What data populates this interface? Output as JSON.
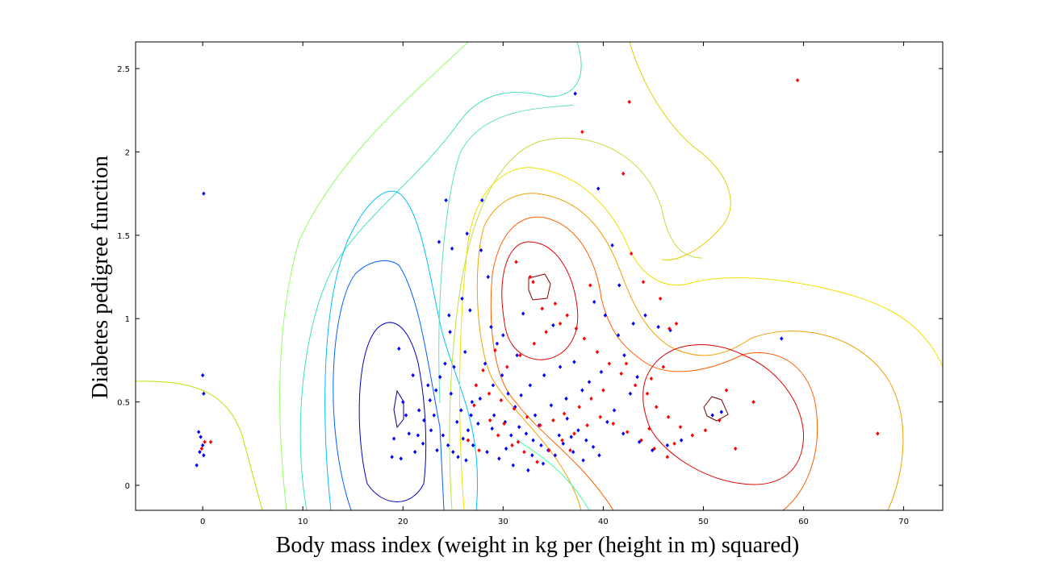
{
  "chart_data": {
    "type": "scatter",
    "title": "",
    "xlabel": "Body mass index (weight in kg per (height in m) squared)",
    "ylabel": "Diabetes pedigree function",
    "xlim": [
      -6.7,
      73.9
    ],
    "ylim": [
      -0.15,
      2.66
    ],
    "xticks": [
      0,
      10,
      20,
      30,
      40,
      50,
      60,
      70
    ],
    "yticks": [
      0,
      0.5,
      1,
      1.5,
      2,
      2.5
    ],
    "xtick_labels": [
      "0",
      "10",
      "20",
      "30",
      "40",
      "50",
      "60",
      "70"
    ],
    "ytick_labels": [
      "0",
      "0.5",
      "1",
      "1.5",
      "2",
      "2.5"
    ],
    "grid": false,
    "legend": "none",
    "series": [
      {
        "color": "#0000ff",
        "marker": "diamond",
        "points": [
          [
            0.1,
            1.75
          ],
          [
            0.0,
            0.66
          ],
          [
            0.1,
            0.55
          ],
          [
            -0.4,
            0.32
          ],
          [
            -0.2,
            0.29
          ],
          [
            0.0,
            0.24
          ],
          [
            -0.3,
            0.2
          ],
          [
            0.1,
            0.18
          ],
          [
            -0.6,
            0.12
          ],
          [
            19.6,
            0.82
          ],
          [
            20.0,
            0.5
          ],
          [
            21.0,
            0.66
          ],
          [
            21.6,
            0.45
          ],
          [
            22.1,
            0.39
          ],
          [
            20.6,
            0.31
          ],
          [
            19.1,
            0.28
          ],
          [
            18.9,
            0.17
          ],
          [
            19.8,
            0.16
          ],
          [
            21.2,
            0.2
          ],
          [
            22.5,
            0.6
          ],
          [
            23.3,
            0.57
          ],
          [
            23.7,
            0.65
          ],
          [
            24.2,
            0.73
          ],
          [
            23.1,
            0.42
          ],
          [
            22.8,
            0.33
          ],
          [
            24.0,
            0.3
          ],
          [
            24.5,
            0.24
          ],
          [
            23.4,
            0.21
          ],
          [
            25.0,
            0.2
          ],
          [
            25.5,
            0.17
          ],
          [
            26.0,
            0.28
          ],
          [
            26.5,
            0.33
          ],
          [
            25.8,
            0.45
          ],
          [
            26.9,
            0.5
          ],
          [
            27.3,
            0.6
          ],
          [
            25.1,
            0.71
          ],
          [
            26.2,
            0.8
          ],
          [
            24.7,
            0.92
          ],
          [
            27.5,
            0.37
          ],
          [
            24.3,
            1.71
          ],
          [
            27.9,
            1.71
          ],
          [
            23.6,
            1.46
          ],
          [
            24.9,
            1.42
          ],
          [
            26.4,
            1.51
          ],
          [
            27.8,
            1.41
          ],
          [
            28.5,
            1.25
          ],
          [
            25.9,
            1.12
          ],
          [
            24.6,
            1.02
          ],
          [
            26.7,
            1.05
          ],
          [
            28.8,
            0.95
          ],
          [
            29.4,
            0.85
          ],
          [
            28.2,
            0.73
          ],
          [
            29.9,
            0.66
          ],
          [
            30.5,
            0.55
          ],
          [
            31.2,
            0.47
          ],
          [
            29.1,
            0.42
          ],
          [
            30.2,
            0.38
          ],
          [
            31.6,
            0.35
          ],
          [
            32.3,
            0.31
          ],
          [
            33.0,
            0.27
          ],
          [
            33.8,
            0.24
          ],
          [
            34.5,
            0.21
          ],
          [
            35.2,
            0.18
          ],
          [
            36.0,
            0.25
          ],
          [
            36.8,
            0.29
          ],
          [
            37.5,
            0.33
          ],
          [
            38.3,
            0.27
          ],
          [
            39.0,
            0.23
          ],
          [
            39.6,
            0.18
          ],
          [
            28.4,
            0.2
          ],
          [
            29.6,
            0.16
          ],
          [
            31.0,
            0.12
          ],
          [
            32.5,
            0.09
          ],
          [
            34.0,
            0.13
          ],
          [
            35.6,
            0.3
          ],
          [
            33.2,
            0.42
          ],
          [
            34.8,
            0.48
          ],
          [
            36.3,
            0.52
          ],
          [
            37.9,
            0.57
          ],
          [
            38.6,
            0.62
          ],
          [
            39.8,
            0.68
          ],
          [
            37.1,
            0.74
          ],
          [
            35.7,
            0.71
          ],
          [
            34.1,
            0.66
          ],
          [
            32.7,
            0.6
          ],
          [
            31.4,
            0.78
          ],
          [
            30.0,
            0.9
          ],
          [
            32.0,
            1.03
          ],
          [
            35.0,
            0.96
          ],
          [
            37.2,
            2.35
          ],
          [
            39.5,
            1.78
          ],
          [
            40.9,
            1.44
          ],
          [
            41.6,
            1.2
          ],
          [
            39.1,
            1.1
          ],
          [
            40.2,
            1.02
          ],
          [
            42.1,
            0.78
          ],
          [
            41.5,
            0.9
          ],
          [
            43.0,
            0.97
          ],
          [
            44.2,
            1.02
          ],
          [
            45.5,
            0.95
          ],
          [
            43.4,
            0.65
          ],
          [
            42.7,
            0.55
          ],
          [
            41.1,
            0.45
          ],
          [
            40.4,
            0.38
          ],
          [
            42.0,
            0.31
          ],
          [
            43.6,
            0.26
          ],
          [
            44.9,
            0.21
          ],
          [
            46.4,
            0.24
          ],
          [
            47.8,
            0.27
          ],
          [
            38.0,
            0.15
          ],
          [
            37.0,
            0.2
          ],
          [
            36.4,
            0.4
          ],
          [
            33.6,
            0.36
          ],
          [
            30.8,
            0.3
          ],
          [
            27.0,
            0.24
          ],
          [
            26.3,
            0.15
          ],
          [
            28.9,
            0.34
          ],
          [
            30.3,
            0.22
          ],
          [
            32.9,
            0.18
          ],
          [
            22.0,
            0.25
          ],
          [
            21.5,
            0.3
          ],
          [
            20.3,
            0.42
          ],
          [
            22.7,
            0.51
          ],
          [
            24.8,
            0.55
          ],
          [
            25.4,
            0.38
          ],
          [
            26.8,
            0.42
          ],
          [
            27.7,
            0.52
          ],
          [
            29.0,
            0.6
          ],
          [
            31.8,
            0.54
          ],
          [
            50.9,
            0.42
          ],
          [
            51.8,
            0.44
          ],
          [
            57.8,
            0.88
          ],
          [
            46.7,
            0.93
          ]
        ]
      },
      {
        "color": "#ff0000",
        "marker": "diamond",
        "points": [
          [
            0.2,
            0.26
          ],
          [
            0.8,
            0.26
          ],
          [
            -0.1,
            0.22
          ],
          [
            59.4,
            2.43
          ],
          [
            42.6,
            2.3
          ],
          [
            37.9,
            2.12
          ],
          [
            42.0,
            1.87
          ],
          [
            42.8,
            1.39
          ],
          [
            44.0,
            1.22
          ],
          [
            45.7,
            1.12
          ],
          [
            46.6,
            0.94
          ],
          [
            47.3,
            0.97
          ],
          [
            38.7,
            1.2
          ],
          [
            33.0,
            1.22
          ],
          [
            31.3,
            1.34
          ],
          [
            32.7,
            1.25
          ],
          [
            33.9,
            1.06
          ],
          [
            35.2,
            1.09
          ],
          [
            36.4,
            1.02
          ],
          [
            37.3,
            0.94
          ],
          [
            38.1,
            0.88
          ],
          [
            39.4,
            0.8
          ],
          [
            40.6,
            0.73
          ],
          [
            41.8,
            0.67
          ],
          [
            43.2,
            0.6
          ],
          [
            44.4,
            0.55
          ],
          [
            45.3,
            0.47
          ],
          [
            46.5,
            0.41
          ],
          [
            47.7,
            0.35
          ],
          [
            48.9,
            0.3
          ],
          [
            50.2,
            0.33
          ],
          [
            51.6,
            0.39
          ],
          [
            52.3,
            0.57
          ],
          [
            55.0,
            0.5
          ],
          [
            53.2,
            0.22
          ],
          [
            67.4,
            0.31
          ],
          [
            44.8,
            0.64
          ],
          [
            46.0,
            0.71
          ],
          [
            42.3,
            0.73
          ],
          [
            40.0,
            0.57
          ],
          [
            38.8,
            0.52
          ],
          [
            37.6,
            0.47
          ],
          [
            36.1,
            0.43
          ],
          [
            35.0,
            0.39
          ],
          [
            33.7,
            0.36
          ],
          [
            32.4,
            0.41
          ],
          [
            31.1,
            0.46
          ],
          [
            29.8,
            0.51
          ],
          [
            28.6,
            0.55
          ],
          [
            27.3,
            0.6
          ],
          [
            30.4,
            0.71
          ],
          [
            31.7,
            0.78
          ],
          [
            33.1,
            0.85
          ],
          [
            34.3,
            0.92
          ],
          [
            35.7,
            0.97
          ],
          [
            29.2,
            0.81
          ],
          [
            28.0,
            0.69
          ],
          [
            27.1,
            0.48
          ],
          [
            28.7,
            0.39
          ],
          [
            29.5,
            0.3
          ],
          [
            30.9,
            0.24
          ],
          [
            32.1,
            0.2
          ],
          [
            33.4,
            0.14
          ],
          [
            34.6,
            0.21
          ],
          [
            35.9,
            0.27
          ],
          [
            37.1,
            0.31
          ],
          [
            38.4,
            0.36
          ],
          [
            39.7,
            0.41
          ],
          [
            41.0,
            0.37
          ],
          [
            42.4,
            0.32
          ],
          [
            43.8,
            0.27
          ],
          [
            45.1,
            0.22
          ],
          [
            46.4,
            0.17
          ],
          [
            47.1,
            0.25
          ],
          [
            44.6,
            0.34
          ],
          [
            36.7,
            0.21
          ],
          [
            31.5,
            0.26
          ],
          [
            30.1,
            0.37
          ],
          [
            26.5,
            0.27
          ],
          [
            27.6,
            0.21
          ]
        ]
      }
    ]
  }
}
